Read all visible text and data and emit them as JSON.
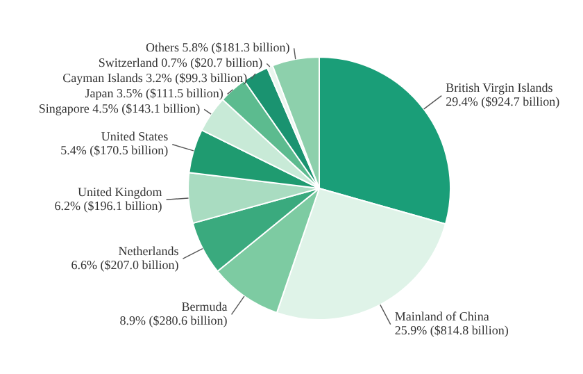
{
  "chart_data": {
    "type": "pie",
    "categories": [
      "British Virgin Islands",
      "Mainland of China",
      "Bermuda",
      "Netherlands",
      "United Kingdom",
      "United States",
      "Singapore",
      "Japan",
      "Cayman Islands",
      "Switzerland",
      "Others"
    ],
    "values": [
      29.4,
      25.9,
      8.9,
      6.6,
      6.2,
      5.4,
      4.5,
      3.5,
      3.2,
      0.7,
      5.8
    ],
    "value_labels": [
      "29.4% ($924.7 billion)",
      "25.9% ($814.8 billion)",
      "8.9% ($280.6 billion)",
      "6.6% ($207.0 billion)",
      "6.2% ($196.1 billion)",
      "5.4% ($170.5 billion)",
      "4.5% ($143.1 billion)",
      "3.5% ($111.5 billion)",
      "3.2% ($99.3 billion)",
      "0.7% ($20.7 billion)",
      "5.8% ($181.3 billion)"
    ],
    "colors": [
      "#1a9e78",
      "#dff3e8",
      "#7dcba2",
      "#3aaa7e",
      "#a9dcc1",
      "#1f9b70",
      "#c8ead7",
      "#5cbb8f",
      "#1a9370",
      "#eaf6ef",
      "#8dd0ac"
    ]
  }
}
